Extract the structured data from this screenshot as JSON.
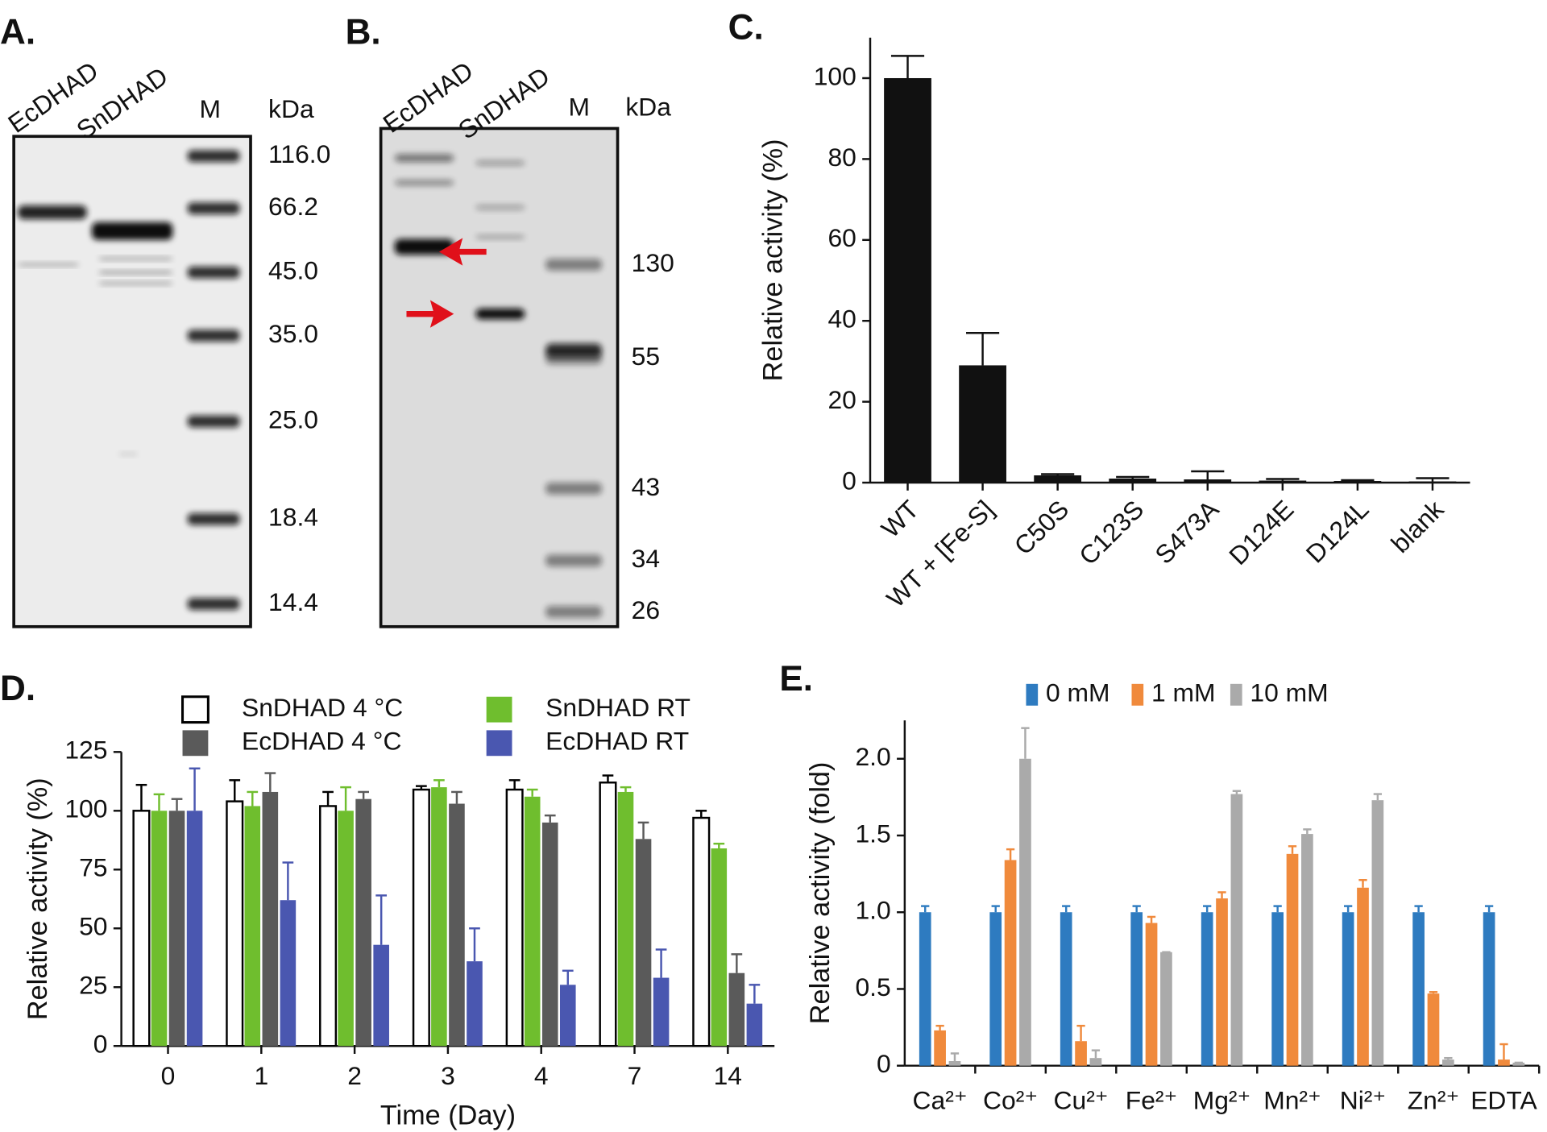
{
  "gels": [
    {
      "label": "A.",
      "lanes": [
        "EcDHAD",
        "SnDHAD",
        "M"
      ],
      "unit": "kDa",
      "markers": [
        "116.0",
        "66.2",
        "45.0",
        "35.0",
        "25.0",
        "18.4",
        "14.4"
      ]
    },
    {
      "label": "B.",
      "lanes": [
        "EcDHAD",
        "SnDHAD",
        "M"
      ],
      "unit": "kDa",
      "markers": [
        "130",
        "55",
        "43",
        "34",
        "26"
      ]
    }
  ],
  "chart_data": [
    {
      "type": "bar",
      "label": "C.",
      "ylabel": "Relative activity (%)",
      "categories": [
        "WT",
        "WT + [Fe-S]",
        "C50S",
        "C123S",
        "S473A",
        "D124E",
        "D124L",
        "blank"
      ],
      "values": [
        100,
        29,
        1.8,
        1,
        0.8,
        0.5,
        0.4,
        0.3
      ],
      "errors": [
        5.5,
        8,
        0.3,
        0.4,
        2,
        0.4,
        0.2,
        0.8
      ],
      "color": "#111111",
      "ylim": [
        0,
        110
      ],
      "yticks": [
        0,
        20,
        40,
        60,
        80,
        100
      ]
    },
    {
      "type": "bar",
      "label": "D.",
      "ylabel": "Relative activity (%)",
      "xlabel": "Time (Day)",
      "categories": [
        "0",
        "1",
        "2",
        "3",
        "4",
        "7",
        "14"
      ],
      "series": [
        {
          "name": "SnDHAD 4 °C",
          "color": "#ffffff",
          "edgecolor": "#000000",
          "values": [
            100,
            104,
            102,
            109,
            109,
            112,
            97
          ],
          "errors": [
            11,
            9,
            6,
            1.5,
            4,
            3,
            3
          ]
        },
        {
          "name": "SnDHAD RT",
          "color": "#6fbe2e",
          "values": [
            100,
            102,
            100,
            110,
            106,
            108,
            84
          ],
          "errors": [
            7,
            6,
            10,
            3,
            3,
            2,
            2
          ]
        },
        {
          "name": "EcDHAD 4 °C",
          "color": "#5a5a5a",
          "values": [
            100,
            108,
            105,
            103,
            95,
            88,
            31
          ],
          "errors": [
            5,
            8,
            3,
            5,
            3,
            7,
            8
          ]
        },
        {
          "name": "EcDHAD RT",
          "color": "#4a57b0",
          "values": [
            100,
            62,
            43,
            36,
            26,
            29,
            18
          ],
          "errors": [
            18,
            16,
            21,
            14,
            6,
            12,
            8
          ]
        }
      ],
      "ylim": [
        0,
        125
      ],
      "yticks": [
        0,
        25,
        50,
        75,
        100,
        125
      ]
    },
    {
      "type": "bar",
      "label": "E.",
      "ylabel": "Relative activity (fold)",
      "categories": [
        "Ca²⁺",
        "Co²⁺",
        "Cu²⁺",
        "Fe²⁺",
        "Mg²⁺",
        "Mn²⁺",
        "Ni²⁺",
        "Zn²⁺",
        "EDTA"
      ],
      "series": [
        {
          "name": "0 mM",
          "color": "#2e7bc0",
          "values": [
            1,
            1,
            1,
            1,
            1,
            1,
            1,
            1,
            1
          ],
          "errors": [
            0.04,
            0.04,
            0.04,
            0.04,
            0.04,
            0.04,
            0.04,
            0.04,
            0.04
          ]
        },
        {
          "name": "1 mM",
          "color": "#f08a3c",
          "values": [
            0.23,
            1.34,
            0.16,
            0.93,
            1.09,
            1.38,
            1.16,
            0.47,
            0.04
          ],
          "errors": [
            0.03,
            0.07,
            0.1,
            0.04,
            0.04,
            0.05,
            0.05,
            0.01,
            0.1
          ]
        },
        {
          "name": "10 mM",
          "color": "#aaaaaa",
          "values": [
            0.03,
            2.0,
            0.05,
            0.74,
            1.77,
            1.51,
            1.73,
            0.04,
            0.02
          ],
          "errors": [
            0.05,
            0.2,
            0.05,
            0,
            0.02,
            0.03,
            0.04,
            0.01,
            0
          ]
        }
      ],
      "ylim": [
        0,
        2.25
      ],
      "yticks": [
        0,
        0.5,
        {
          "value": 1,
          "label": "1.0"
        },
        1.5,
        {
          "value": 2,
          "label": "2.0"
        }
      ]
    }
  ]
}
